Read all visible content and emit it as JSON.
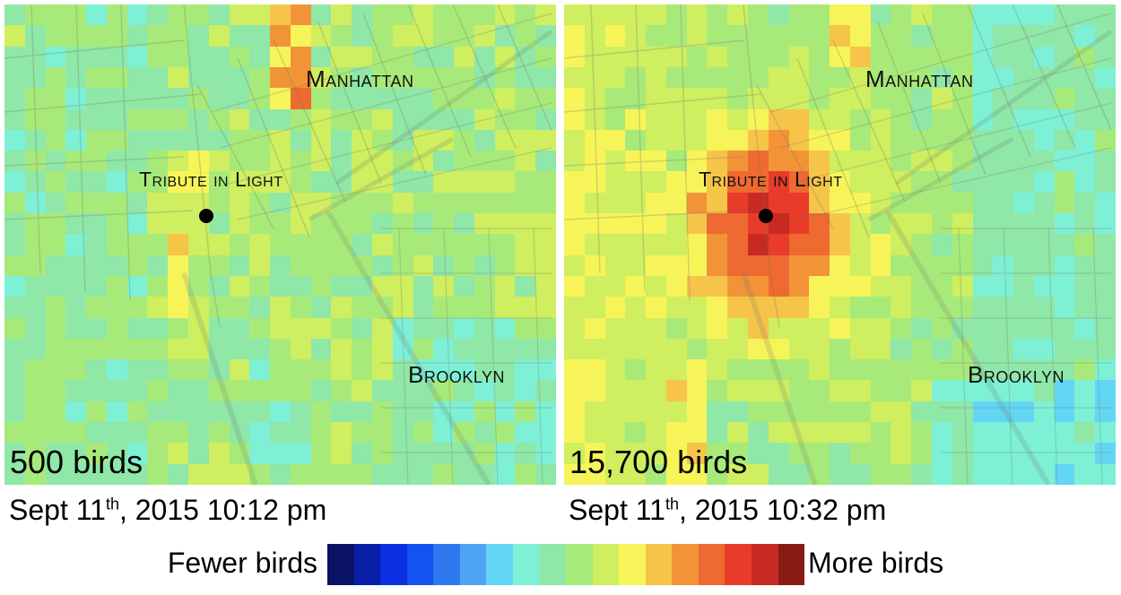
{
  "colors": {
    "scale": [
      "#0b1366",
      "#0a1fa8",
      "#0a30e0",
      "#1553f0",
      "#2f78f0",
      "#4ea4f3",
      "#64d6f5",
      "#7ef0d6",
      "#8fe7a8",
      "#a8ea7a",
      "#cfee60",
      "#f7f45a",
      "#f7c44a",
      "#f29338",
      "#ee6a30",
      "#e93b2a",
      "#c62a22",
      "#8a1a14"
    ],
    "base_map": "#9fe39a",
    "streets": "#6a7a66"
  },
  "left_map": {
    "place_labels": {
      "manhattan": "Manhattan",
      "tribute": "Tribute in Light",
      "brooklyn": "Brooklyn"
    },
    "bird_count": "500 birds",
    "timestamp": {
      "prefix": "Sept 11",
      "suffix": "th",
      "rest": ", 2015 10:12 pm"
    }
  },
  "right_map": {
    "place_labels": {
      "manhattan": "Manhattan",
      "tribute": "Tribute in Light",
      "brooklyn": "Brooklyn"
    },
    "bird_count": "15,700 birds",
    "timestamp": {
      "prefix": "Sept 11",
      "suffix": "th",
      "rest": ", 2015 10:32 pm"
    }
  },
  "legend": {
    "low_label": "Fewer birds",
    "high_label": "More birds"
  }
}
